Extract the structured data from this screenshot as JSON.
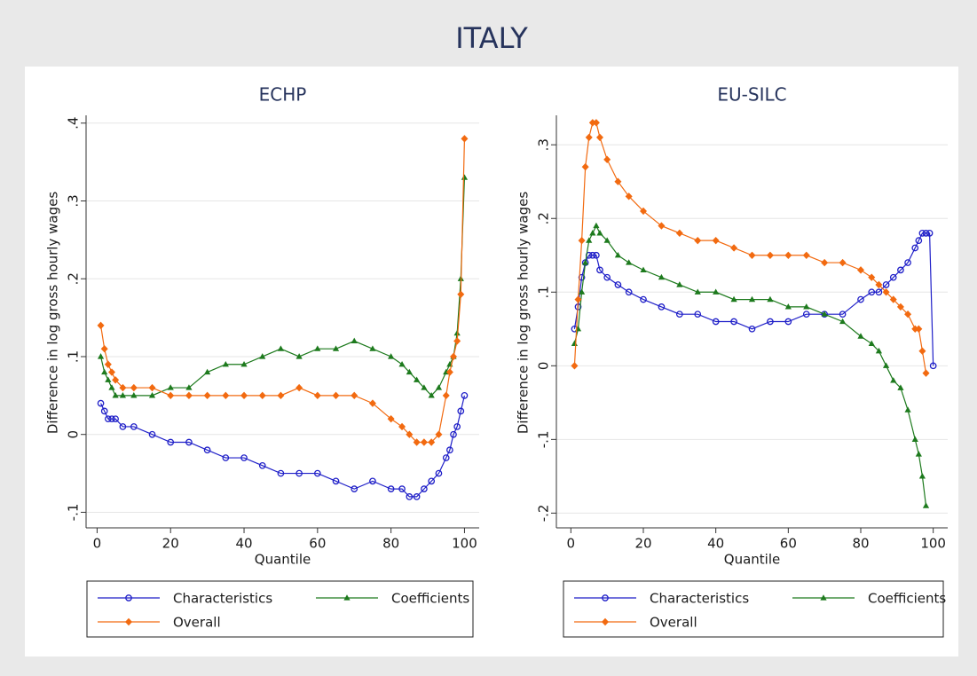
{
  "title": "ITALY",
  "chart_data": [
    {
      "type": "line",
      "title": "ECHP",
      "x_label": "Quantile",
      "y_label": "Difference in log gross hourly wages",
      "x": [
        1,
        2,
        3,
        4,
        5,
        7,
        10,
        15,
        20,
        25,
        30,
        35,
        40,
        45,
        50,
        55,
        60,
        65,
        70,
        75,
        80,
        83,
        85,
        87,
        89,
        91,
        93,
        95,
        96,
        97,
        98,
        99,
        100
      ],
      "series": [
        {
          "name": "Characteristics",
          "color": "#1f1fc8",
          "marker": "circle",
          "values": [
            0.04,
            0.03,
            0.02,
            0.02,
            0.02,
            0.01,
            0.01,
            0.0,
            -0.01,
            -0.01,
            -0.02,
            -0.03,
            -0.03,
            -0.04,
            -0.05,
            -0.05,
            -0.05,
            -0.06,
            -0.07,
            -0.06,
            -0.07,
            -0.07,
            -0.08,
            -0.08,
            -0.07,
            -0.06,
            -0.05,
            -0.03,
            -0.02,
            0.0,
            0.01,
            0.03,
            0.05
          ]
        },
        {
          "name": "Coefficients",
          "color": "#1d7a1d",
          "marker": "triangle",
          "values": [
            0.1,
            0.08,
            0.07,
            0.06,
            0.05,
            0.05,
            0.05,
            0.05,
            0.06,
            0.06,
            0.08,
            0.09,
            0.09,
            0.1,
            0.11,
            0.1,
            0.11,
            0.11,
            0.12,
            0.11,
            0.1,
            0.09,
            0.08,
            0.07,
            0.06,
            0.05,
            0.06,
            0.08,
            0.09,
            0.1,
            0.13,
            0.2,
            0.33
          ]
        },
        {
          "name": "Overall",
          "color": "#f26a10",
          "marker": "diamond",
          "values": [
            0.14,
            0.11,
            0.09,
            0.08,
            0.07,
            0.06,
            0.06,
            0.06,
            0.05,
            0.05,
            0.05,
            0.05,
            0.05,
            0.05,
            0.05,
            0.06,
            0.05,
            0.05,
            0.05,
            0.04,
            0.02,
            0.01,
            0.0,
            -0.01,
            -0.01,
            -0.01,
            0.0,
            0.05,
            0.08,
            0.1,
            0.12,
            0.18,
            0.38
          ]
        }
      ],
      "xlim": [
        -3,
        104
      ],
      "ylim": [
        -0.12,
        0.41
      ],
      "xticks": [
        0,
        20,
        40,
        60,
        80,
        100
      ],
      "yticks": [
        {
          "value": -0.1,
          "label": "-.1"
        },
        0,
        {
          "value": 0.1,
          "label": ".1"
        },
        {
          "value": 0.2,
          "label": ".2"
        },
        {
          "value": 0.3,
          "label": ".3"
        },
        {
          "value": 0.4,
          "label": ".4"
        }
      ],
      "grid": true,
      "legend": "bottom"
    },
    {
      "type": "line",
      "title": "EU-SILC",
      "x_label": "Quantile",
      "y_label": "Difference in log gross hourly wages",
      "x": [
        1,
        2,
        3,
        4,
        5,
        6,
        7,
        8,
        10,
        13,
        16,
        20,
        25,
        30,
        35,
        40,
        45,
        50,
        55,
        60,
        65,
        70,
        75,
        80,
        83,
        85,
        87,
        89,
        91,
        93,
        95,
        96,
        97,
        98,
        99,
        100
      ],
      "series": [
        {
          "name": "Characteristics",
          "color": "#1f1fc8",
          "marker": "circle",
          "values": [
            0.05,
            0.08,
            0.12,
            0.14,
            0.15,
            0.15,
            0.15,
            0.13,
            0.12,
            0.11,
            0.1,
            0.09,
            0.08,
            0.07,
            0.07,
            0.06,
            0.06,
            0.05,
            0.06,
            0.06,
            0.07,
            0.07,
            0.07,
            0.09,
            0.1,
            0.1,
            0.11,
            0.12,
            0.13,
            0.14,
            0.16,
            0.17,
            0.18,
            0.18,
            0.18,
            0.0
          ]
        },
        {
          "name": "Coefficients",
          "color": "#1d7a1d",
          "marker": "triangle",
          "values": [
            0.03,
            0.05,
            0.1,
            0.14,
            0.17,
            0.18,
            0.19,
            0.18,
            0.17,
            0.15,
            0.14,
            0.13,
            0.12,
            0.11,
            0.1,
            0.1,
            0.09,
            0.09,
            0.09,
            0.08,
            0.08,
            0.07,
            0.06,
            0.04,
            0.03,
            0.02,
            0.0,
            -0.02,
            -0.03,
            -0.06,
            -0.1,
            -0.12,
            -0.15,
            -0.19,
            null,
            null
          ]
        },
        {
          "name": "Overall",
          "color": "#f26a10",
          "marker": "diamond",
          "values": [
            0.0,
            0.09,
            0.17,
            0.27,
            0.31,
            0.33,
            0.33,
            0.31,
            0.28,
            0.25,
            0.23,
            0.21,
            0.19,
            0.18,
            0.17,
            0.17,
            0.16,
            0.15,
            0.15,
            0.15,
            0.15,
            0.14,
            0.14,
            0.13,
            0.12,
            0.11,
            0.1,
            0.09,
            0.08,
            0.07,
            0.05,
            0.05,
            0.02,
            -0.01,
            null,
            null
          ]
        }
      ],
      "xlim": [
        -4,
        104
      ],
      "ylim": [
        -0.22,
        0.34
      ],
      "xticks": [
        0,
        20,
        40,
        60,
        80,
        100
      ],
      "yticks": [
        {
          "value": -0.2,
          "label": "-.2"
        },
        {
          "value": -0.1,
          "label": "-.1"
        },
        0,
        {
          "value": 0.1,
          "label": ".1"
        },
        {
          "value": 0.2,
          "label": ".2"
        },
        {
          "value": 0.3,
          "label": ".3"
        }
      ],
      "grid": true,
      "legend": "bottom"
    }
  ]
}
